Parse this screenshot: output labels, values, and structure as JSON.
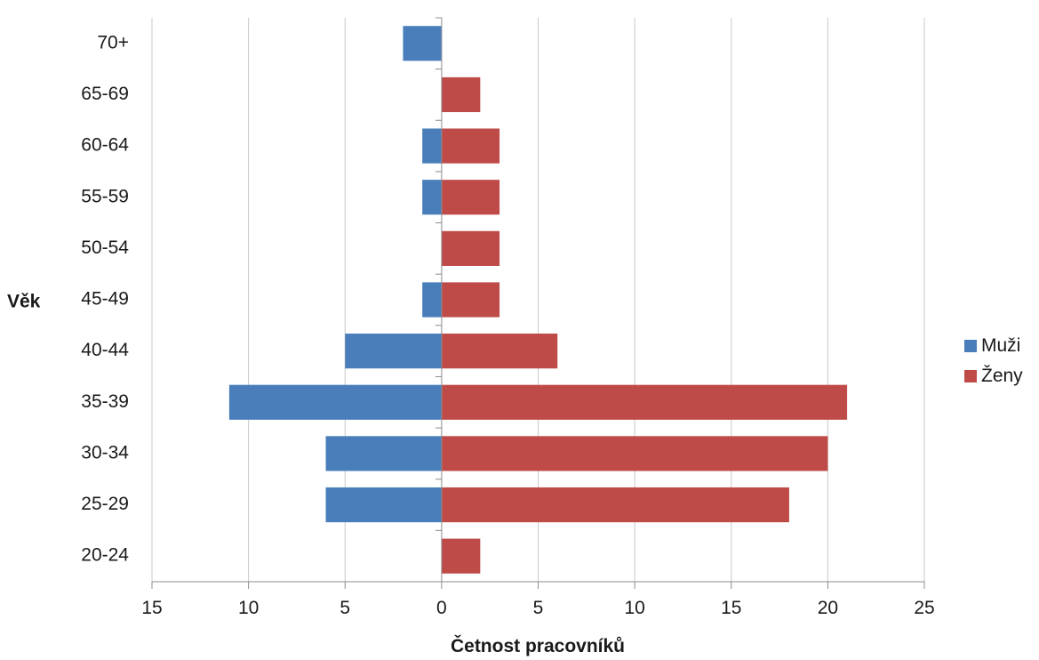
{
  "chart_data": {
    "type": "bar",
    "orientation": "horizontal",
    "categories": [
      "20-24",
      "25-29",
      "30-34",
      "35-39",
      "40-44",
      "45-49",
      "50-54",
      "55-59",
      "60-64",
      "65-69",
      "70+"
    ],
    "series": [
      {
        "name": "Muži",
        "values": [
          0,
          6,
          6,
          11,
          5,
          1,
          0,
          1,
          1,
          0,
          2
        ],
        "direction": "left",
        "color": "#4a7ebb"
      },
      {
        "name": "Ženy",
        "values": [
          2,
          18,
          20,
          21,
          6,
          3,
          3,
          3,
          3,
          2,
          0
        ],
        "direction": "right",
        "color": "#be4b48"
      }
    ],
    "xlabel": "Četnost pracovníků",
    "ylabel": "Věk",
    "xlim": [
      -15,
      25
    ],
    "xticks": [
      -15,
      -10,
      -5,
      0,
      5,
      10,
      15,
      20,
      25
    ],
    "xtick_labels": [
      "15",
      "10",
      "5",
      "0",
      "5",
      "10",
      "15",
      "20",
      "25"
    ],
    "grid": "vertical",
    "legend": "right"
  }
}
